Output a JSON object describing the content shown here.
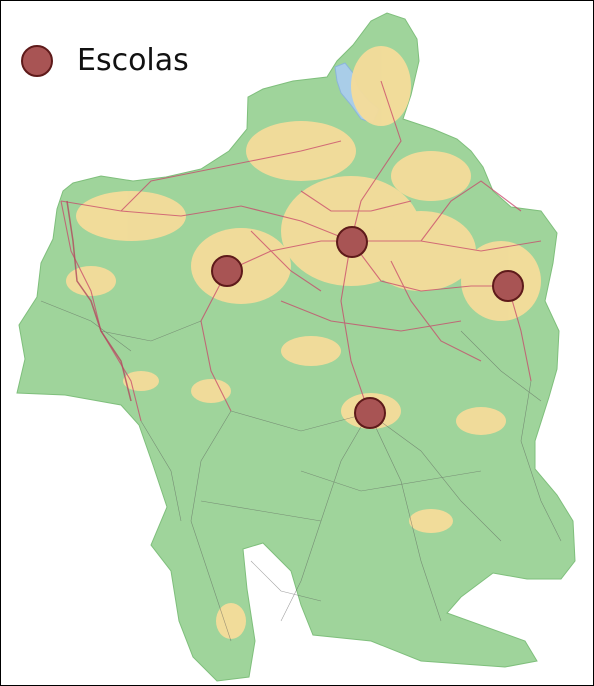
{
  "legend": {
    "label": "Escolas",
    "symbol": "circle",
    "fill_color": "#a85454",
    "stroke_color": "#5e1a1a"
  },
  "map": {
    "land_color": "#9fd49b",
    "urban_color": "#f5dc9a",
    "road_color": "#c8466a",
    "water_color": "#a9cde8",
    "background_color": "#ffffff",
    "school_count": 4
  }
}
